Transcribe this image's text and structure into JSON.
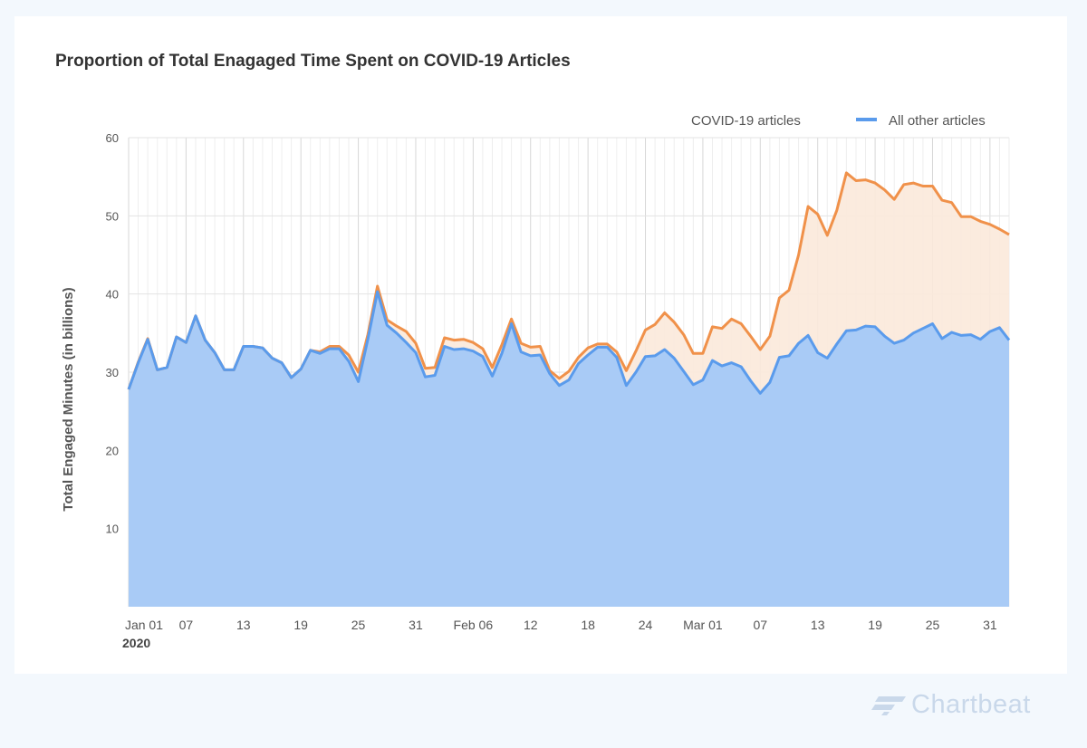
{
  "brand": {
    "name": "Chartbeat",
    "logo_icon": "chartbeat-logo-icon",
    "color": "#c9d8ea"
  },
  "chart_data": {
    "type": "area",
    "title": "Proportion of Total Enagaged Time Spent on COVID-19 Articles",
    "ylabel": "Total Engaged Minutes (in billions)",
    "xlabel": "",
    "ylim": [
      0,
      60
    ],
    "yticks": [
      10,
      20,
      30,
      40,
      50,
      60
    ],
    "grid": true,
    "legend_position": "top-right",
    "x_start_date": "2020-01-01",
    "x_tick_labels": [
      "Jan 01",
      "07",
      "13",
      "19",
      "25",
      "31",
      "Feb 06",
      "12",
      "18",
      "24",
      "Mar 01",
      "07",
      "13",
      "19",
      "25",
      "31"
    ],
    "x_year_label": "2020",
    "series": [
      {
        "name": "COVID-19 articles",
        "color": "#f0914a",
        "values": [
          27.8,
          31.3,
          34.3,
          30.3,
          30.6,
          34.5,
          33.8,
          37.2,
          34.1,
          32.5,
          30.3,
          30.3,
          33.3,
          33.3,
          33.1,
          31.8,
          31.2,
          29.3,
          30.4,
          32.8,
          32.6,
          33.3,
          33.3,
          32.2,
          30.0,
          34.8,
          41.0,
          36.7,
          35.9,
          35.2,
          33.7,
          30.5,
          30.6,
          34.4,
          34.1,
          34.2,
          33.8,
          33.0,
          30.6,
          33.5,
          36.8,
          33.7,
          33.2,
          33.3,
          30.2,
          29.2,
          30.1,
          31.9,
          33.1,
          33.6,
          33.6,
          32.6,
          30.2,
          32.7,
          35.4,
          36.1,
          37.6,
          36.4,
          34.8,
          32.4,
          32.4,
          35.8,
          35.6,
          36.8,
          36.2,
          34.6,
          32.9,
          34.6,
          39.5,
          40.5,
          45.0,
          51.2,
          50.2,
          47.5,
          50.7,
          55.5,
          54.5,
          54.6,
          54.2,
          53.3,
          52.1,
          54.0,
          54.2,
          53.8,
          53.8,
          52.0,
          51.7,
          49.9,
          49.9,
          49.3,
          48.9,
          48.3,
          47.6
        ]
      },
      {
        "name": "All other articles",
        "color": "#5a9bec",
        "values": [
          27.8,
          31.2,
          34.2,
          30.3,
          30.6,
          34.5,
          33.8,
          37.2,
          34.1,
          32.5,
          30.3,
          30.3,
          33.3,
          33.3,
          33.1,
          31.8,
          31.2,
          29.3,
          30.4,
          32.8,
          32.4,
          33.0,
          33.0,
          31.4,
          28.8,
          34.2,
          40.3,
          36.0,
          35.0,
          33.8,
          32.5,
          29.4,
          29.6,
          33.3,
          32.9,
          33.0,
          32.7,
          32.0,
          29.5,
          32.4,
          36.2,
          32.6,
          32.1,
          32.2,
          29.8,
          28.3,
          29.0,
          31.1,
          32.2,
          33.2,
          33.2,
          31.9,
          28.3,
          30.0,
          32.0,
          32.1,
          32.9,
          31.8,
          30.1,
          28.4,
          29.0,
          31.5,
          30.8,
          31.2,
          30.7,
          28.9,
          27.3,
          28.7,
          31.9,
          32.1,
          33.7,
          34.7,
          32.5,
          31.8,
          33.6,
          35.3,
          35.4,
          35.9,
          35.8,
          34.6,
          33.7,
          34.1,
          35.0,
          35.6,
          36.2,
          34.3,
          35.1,
          34.7,
          34.8,
          34.2,
          35.2,
          35.7,
          34.1
        ]
      }
    ]
  }
}
